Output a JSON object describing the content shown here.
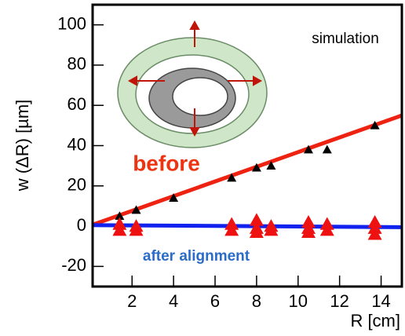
{
  "chart_data": {
    "type": "scatter",
    "y_label": "w (ΔR) [µm]",
    "x_label": "R [cm]",
    "annotations": [
      "simulation",
      "before",
      "after alignment"
    ],
    "xlim": [
      0.1,
      15
    ],
    "xticks": [
      2,
      4,
      6,
      8,
      10,
      12,
      14
    ],
    "ylim": [
      -30,
      110
    ],
    "yticks": [
      -20,
      0,
      20,
      40,
      60,
      80,
      100
    ],
    "series": [
      {
        "mode": "line",
        "color": "#ee2211",
        "x": [
          0.1,
          15
        ],
        "values": [
          0.7,
          55
        ]
      },
      {
        "mode": "line",
        "color": "#1122ee",
        "x": [
          0.1,
          15
        ],
        "values": [
          0.5,
          -0.5
        ]
      },
      {
        "mode": "markers",
        "color": "#000000",
        "x": [
          1.4,
          2.2,
          4,
          6.8,
          8,
          8.7,
          10.5,
          11.4,
          13.7
        ],
        "values": [
          5,
          8,
          14,
          24,
          29,
          30,
          38,
          38,
          50
        ]
      },
      {
        "mode": "markers",
        "color": "#ee1111",
        "x": [
          1.4,
          1.4,
          2.2,
          2.2,
          6.8,
          6.8,
          8,
          8,
          8,
          8.7,
          8.7,
          10.5,
          10.5,
          10.5,
          11.4,
          11.4,
          13.7,
          13.7,
          13.7
        ],
        "values": [
          1,
          -2,
          0,
          -2,
          1,
          -2,
          3,
          -1,
          -3,
          0,
          -2,
          2,
          -1,
          -3,
          1,
          -2,
          2,
          -1,
          -4
        ]
      }
    ]
  }
}
